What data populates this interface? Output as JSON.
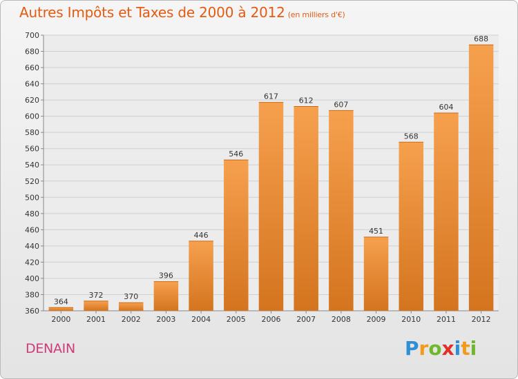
{
  "title": "Autres Impôts et Taxes de 2000 à 2012",
  "unit": "(en milliers d'€)",
  "city": "DENAIN",
  "logo": {
    "text": "Proxiti",
    "letters": [
      "P",
      "r",
      "o",
      "x",
      "i",
      "t",
      "i"
    ],
    "colors": [
      "#2f8fd6",
      "#f29a1c",
      "#6fb82e",
      "#e0302a",
      "#2f8fd6",
      "#f29a1c",
      "#6fb82e"
    ]
  },
  "colors": {
    "bar_light": "#f6a04e",
    "bar_dark": "#d4741f",
    "title": "#e35a10",
    "city": "#cf3a7a",
    "grid": "#cfcfcf"
  },
  "chart_data": {
    "type": "bar",
    "categories": [
      "2000",
      "2001",
      "2002",
      "2003",
      "2004",
      "2005",
      "2006",
      "2007",
      "2008",
      "2009",
      "2010",
      "2011",
      "2012"
    ],
    "values": [
      364,
      372,
      370,
      396,
      446,
      546,
      617,
      612,
      607,
      451,
      568,
      604,
      688
    ],
    "ylim": [
      360,
      700
    ],
    "yticks": [
      360,
      380,
      400,
      420,
      440,
      460,
      480,
      500,
      520,
      540,
      560,
      580,
      600,
      620,
      640,
      660,
      680,
      700
    ],
    "grid": true,
    "title": "Autres Impôts et Taxes de 2000 à 2012",
    "xlabel": "",
    "ylabel": ""
  }
}
